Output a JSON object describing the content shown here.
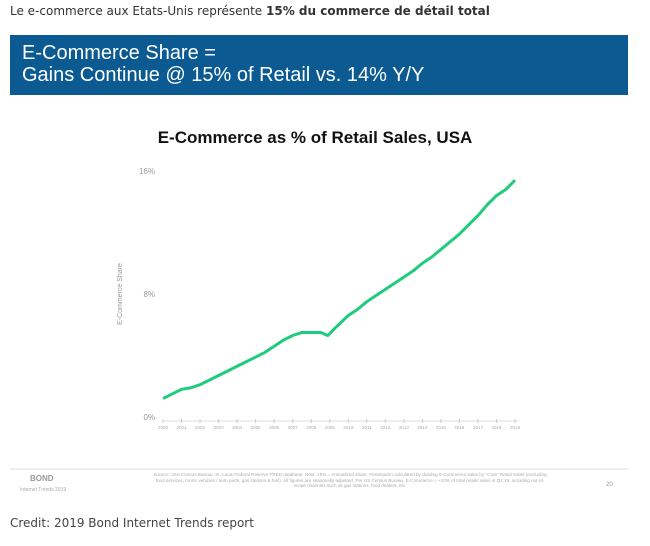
{
  "caption": {
    "text": "Le e-commerce aux Etats-Unis représente ",
    "bold": "15% du commerce de détail total"
  },
  "banner": {
    "line1": "E-Commerce Share =",
    "line2": "Gains Continue @ 15% of Retail vs. 14% Y/Y"
  },
  "chart_data": {
    "type": "line",
    "title": "E-Commerce as % of Retail Sales, USA",
    "y_label": "E-Commerce Share",
    "x": [
      2000,
      2000.5,
      2001,
      2001.5,
      2002,
      2002.5,
      2003,
      2003.5,
      2004,
      2004.5,
      2005,
      2005.5,
      2006,
      2006.5,
      2007,
      2007.5,
      2008,
      2008.5,
      2008.9,
      2009.3,
      2010,
      2010.5,
      2011,
      2011.5,
      2012,
      2012.5,
      2013,
      2013.5,
      2014,
      2014.5,
      2015,
      2015.5,
      2016,
      2016.5,
      2017,
      2017.5,
      2018,
      2018.5,
      2019
    ],
    "series": [
      {
        "name": "E-Commerce Share",
        "color": "#1fcc7c",
        "values": [
          1.2,
          1.5,
          1.8,
          1.9,
          2.1,
          2.4,
          2.7,
          3.0,
          3.3,
          3.6,
          3.9,
          4.2,
          4.6,
          5.0,
          5.3,
          5.5,
          5.5,
          5.5,
          5.3,
          5.8,
          6.6,
          7.0,
          7.5,
          7.9,
          8.3,
          8.7,
          9.1,
          9.5,
          10.0,
          10.4,
          10.9,
          11.4,
          11.9,
          12.5,
          13.1,
          13.8,
          14.4,
          14.8,
          15.4
        ]
      }
    ],
    "xlim": [
      2000,
      2019
    ],
    "xticks": [
      2000,
      2001,
      2002,
      2003,
      2004,
      2005,
      2006,
      2007,
      2008,
      2009,
      2010,
      2011,
      2012,
      2013,
      2014,
      2015,
      2016,
      2017,
      2018,
      2019
    ],
    "ylim": [
      0,
      16
    ],
    "yticks": [
      {
        "value": 0,
        "label": "0%"
      },
      {
        "value": 8,
        "label": "8%"
      },
      {
        "value": 16,
        "label": "16%"
      }
    ],
    "grid": false
  },
  "footer": {
    "brand": "BOND",
    "brand_sub": "Internet Trends 2019",
    "source": "Source: USA Census Bureau, St. Louis Federal Reserve FRED database. Note: 15% = Annualized share. Penetration calculated by dividing E-Commerce sales by \"Core\" Retail Sales (excluding food services, motor vehicles / auto parts, gas stations & fuel). All figures are seasonally adjusted. Per US Census Bureau, E-Commerce = ~10% of total retails sales in Q1:19, including out-of-scope channels such as gas stations, food dealers, etc.",
    "page": "20"
  },
  "credit": "Credit: 2019 Bond Internet Trends report"
}
